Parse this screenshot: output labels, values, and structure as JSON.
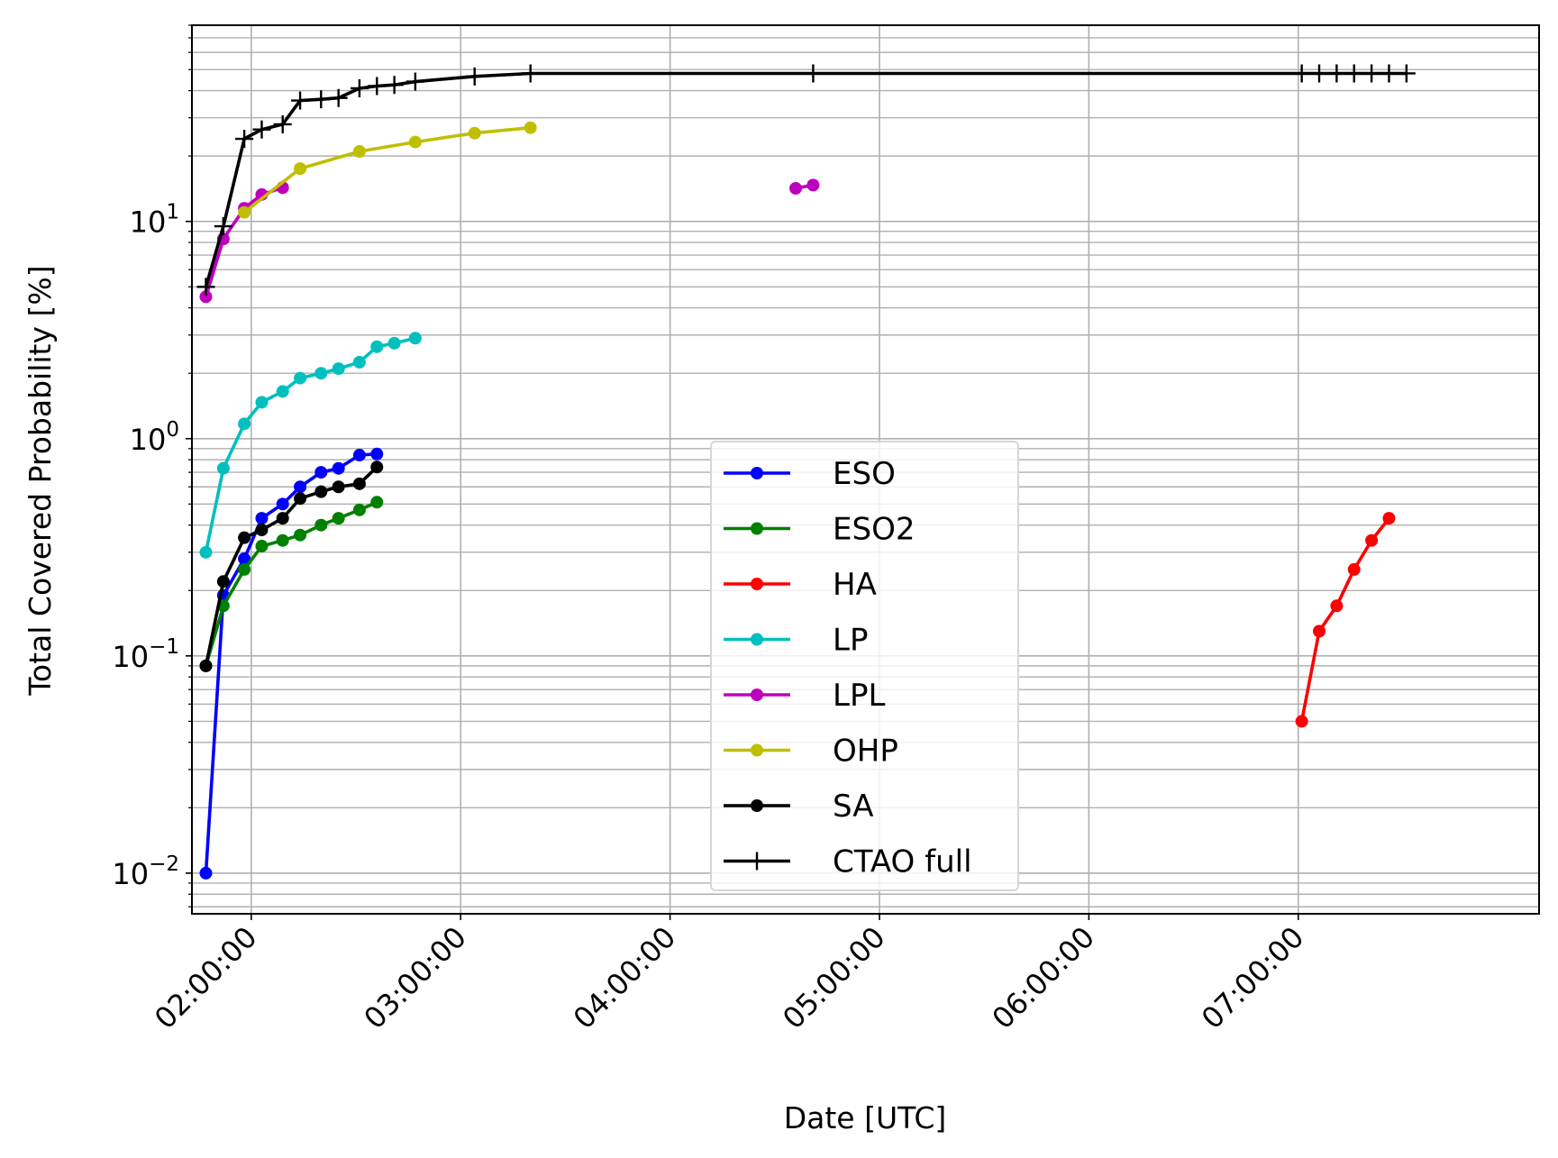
{
  "chart_data": {
    "type": "line",
    "xlabel": "Date [UTC]",
    "ylabel": "Total Covered Probability [%]",
    "yscale": "log",
    "ylim": [
      0.0065,
      80
    ],
    "xlim": [
      "01:43:00",
      "08:09:00"
    ],
    "grid": true,
    "legend_position": "lower-center",
    "x_ticks": [
      "02:00:00",
      "03:00:00",
      "04:00:00",
      "05:00:00",
      "06:00:00",
      "07:00:00"
    ],
    "y_ticks": [
      {
        "value": 0.01,
        "base": "10",
        "exp": "−2"
      },
      {
        "value": 0.1,
        "base": "10",
        "exp": "−1"
      },
      {
        "value": 1,
        "base": "10",
        "exp": "0"
      },
      {
        "value": 10,
        "base": "10",
        "exp": "1"
      }
    ],
    "series": [
      {
        "name": "ESO",
        "color": "#0000ff",
        "marker": "dot",
        "points": [
          [
            "01:47:00",
            0.01
          ],
          [
            "01:52:00",
            0.19
          ],
          [
            "01:58:00",
            0.28
          ],
          [
            "02:03:00",
            0.43
          ],
          [
            "02:09:00",
            0.5
          ],
          [
            "02:14:00",
            0.6
          ],
          [
            "02:20:00",
            0.7
          ],
          [
            "02:25:00",
            0.73
          ],
          [
            "02:31:00",
            0.84
          ],
          [
            "02:36:00",
            0.85
          ]
        ]
      },
      {
        "name": "ESO2",
        "color": "#008000",
        "marker": "dot",
        "points": [
          [
            "01:47:00",
            0.09
          ],
          [
            "01:52:00",
            0.17
          ],
          [
            "01:58:00",
            0.25
          ],
          [
            "02:03:00",
            0.32
          ],
          [
            "02:09:00",
            0.34
          ],
          [
            "02:14:00",
            0.36
          ],
          [
            "02:20:00",
            0.4
          ],
          [
            "02:25:00",
            0.43
          ],
          [
            "02:31:00",
            0.47
          ],
          [
            "02:36:00",
            0.51
          ]
        ]
      },
      {
        "name": "HA",
        "color": "#ff0000",
        "marker": "dot",
        "points": [
          [
            "07:01:00",
            0.05
          ],
          [
            "07:06:00",
            0.13
          ],
          [
            "07:11:00",
            0.17
          ],
          [
            "07:16:00",
            0.25
          ],
          [
            "07:21:00",
            0.34
          ],
          [
            "07:26:00",
            0.43
          ]
        ]
      },
      {
        "name": "LP",
        "color": "#00bfbf",
        "marker": "dot",
        "points": [
          [
            "01:47:00",
            0.3
          ],
          [
            "01:52:00",
            0.73
          ],
          [
            "01:58:00",
            1.17
          ],
          [
            "02:03:00",
            1.47
          ],
          [
            "02:09:00",
            1.65
          ],
          [
            "02:14:00",
            1.9
          ],
          [
            "02:20:00",
            2.0
          ],
          [
            "02:25:00",
            2.1
          ],
          [
            "02:31:00",
            2.25
          ],
          [
            "02:36:00",
            2.65
          ],
          [
            "02:41:00",
            2.75
          ],
          [
            "02:47:00",
            2.9
          ]
        ]
      },
      {
        "name": "LPL",
        "color": "#bf00bf",
        "marker": "dot",
        "segments": [
          [
            [
              "01:47:00",
              4.5
            ],
            [
              "01:52:00",
              8.3
            ],
            [
              "01:58:00",
              11.5
            ],
            [
              "02:03:00",
              13.3
            ],
            [
              "02:09:00",
              14.3
            ]
          ],
          [
            [
              "04:36:00",
              14.2
            ],
            [
              "04:41:00",
              14.7
            ]
          ]
        ]
      },
      {
        "name": "OHP",
        "color": "#bfbf00",
        "marker": "dot",
        "points": [
          [
            "01:58:00",
            11.0
          ],
          [
            "02:14:00",
            17.5
          ],
          [
            "02:31:00",
            21.0
          ],
          [
            "02:47:00",
            23.2
          ],
          [
            "03:04:00",
            25.5
          ],
          [
            "03:20:00",
            27.0
          ]
        ]
      },
      {
        "name": "SA",
        "color": "#000000",
        "marker": "dot",
        "points": [
          [
            "01:47:00",
            0.09
          ],
          [
            "01:52:00",
            0.22
          ],
          [
            "01:58:00",
            0.35
          ],
          [
            "02:03:00",
            0.38
          ],
          [
            "02:09:00",
            0.43
          ],
          [
            "02:14:00",
            0.53
          ],
          [
            "02:20:00",
            0.57
          ],
          [
            "02:25:00",
            0.6
          ],
          [
            "02:31:00",
            0.62
          ],
          [
            "02:36:00",
            0.74
          ]
        ]
      },
      {
        "name": "CTAO full",
        "color": "#000000",
        "marker": "plus",
        "points": [
          [
            "01:47:00",
            5.0
          ],
          [
            "01:52:00",
            9.5
          ],
          [
            "01:58:00",
            24.0
          ],
          [
            "02:03:00",
            26.5
          ],
          [
            "02:09:00",
            28.0
          ],
          [
            "02:14:00",
            36.0
          ],
          [
            "02:20:00",
            36.5
          ],
          [
            "02:25:00",
            37.0
          ],
          [
            "02:31:00",
            41.0
          ],
          [
            "02:36:00",
            42.0
          ],
          [
            "02:41:00",
            42.5
          ],
          [
            "02:47:00",
            44.0
          ],
          [
            "03:04:00",
            46.5
          ],
          [
            "03:20:00",
            48.0
          ],
          [
            "04:41:00",
            48.0
          ],
          [
            "07:01:00",
            48.0
          ],
          [
            "07:06:00",
            48.0
          ],
          [
            "07:11:00",
            48.0
          ],
          [
            "07:16:00",
            48.0
          ],
          [
            "07:21:00",
            48.0
          ],
          [
            "07:26:00",
            48.0
          ],
          [
            "07:31:00",
            48.0
          ]
        ]
      }
    ]
  }
}
